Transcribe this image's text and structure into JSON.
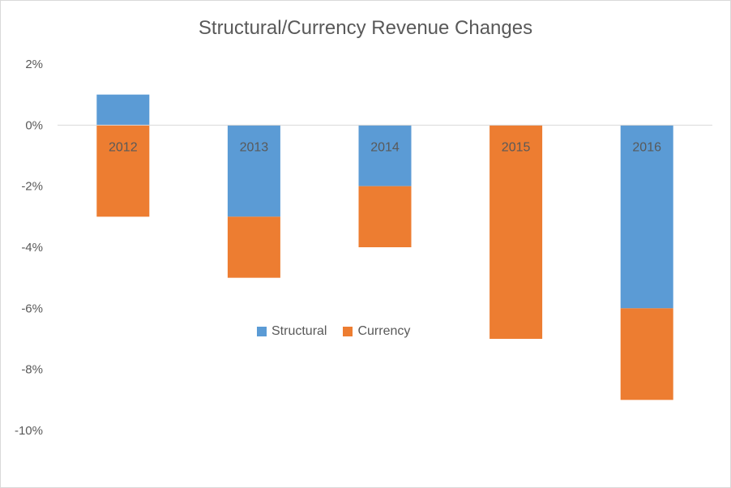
{
  "chart_data": {
    "type": "bar",
    "stacked": true,
    "title": "Structural/Currency Revenue Changes",
    "categories": [
      "2012",
      "2013",
      "2014",
      "2015",
      "2016"
    ],
    "series": [
      {
        "name": "Structural",
        "values": [
          1,
          -3,
          -2,
          0,
          -6
        ],
        "color": "#5B9BD5"
      },
      {
        "name": "Currency",
        "values": [
          -3,
          -2,
          -2,
          -7,
          -3
        ],
        "color": "#ED7D31"
      }
    ],
    "yticks": [
      "2%",
      "0%",
      "-2%",
      "-4%",
      "-6%",
      "-8%",
      "-10%"
    ],
    "ylim": [
      -10,
      2
    ],
    "xlabel": "",
    "ylabel": "",
    "legend_position": "center",
    "grid": false
  }
}
